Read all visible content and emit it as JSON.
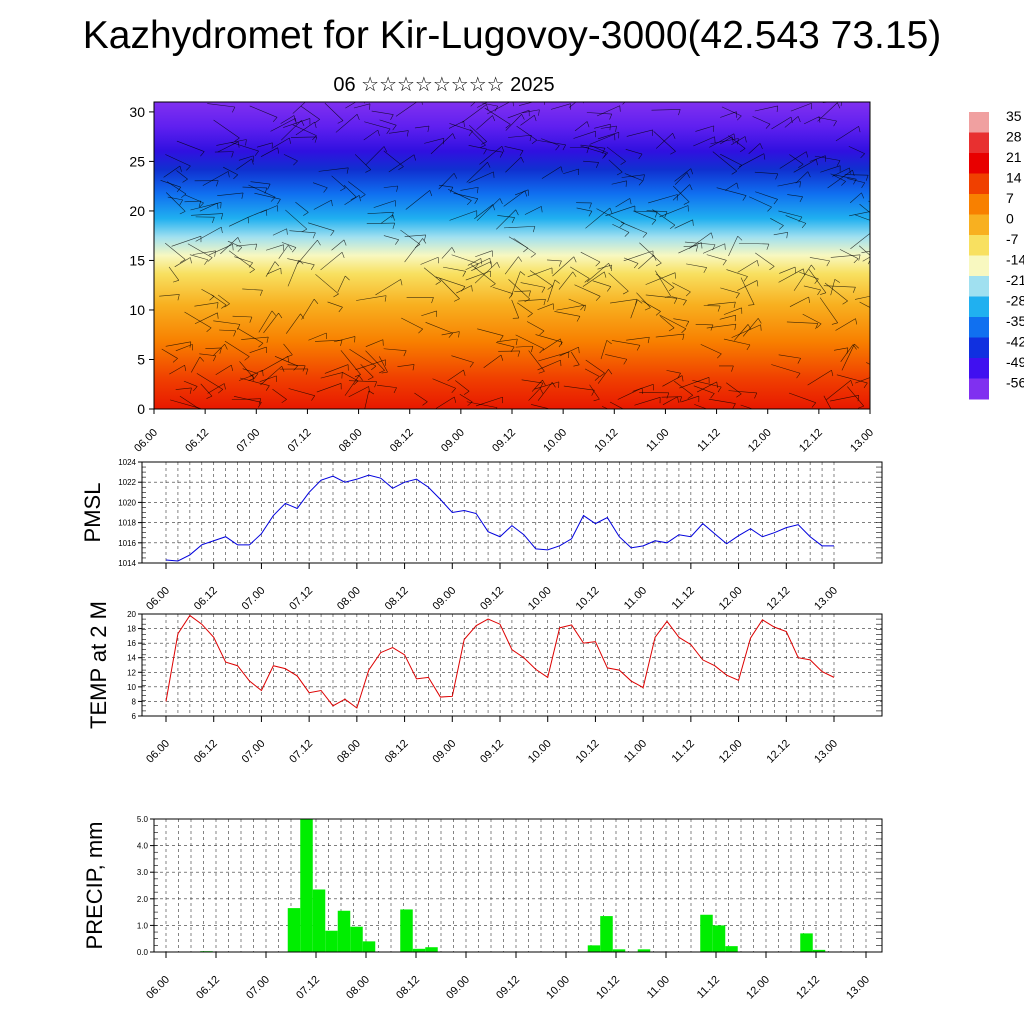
{
  "header": {
    "title": "Kazhydromet for Kir-Lugovoy-3000(42.543 73.15)",
    "subtitle": "06 ☆☆☆☆☆☆☆☆ 2025"
  },
  "time_labels": [
    "06.00",
    "06.12",
    "07.00",
    "07.12",
    "08.00",
    "08.12",
    "09.00",
    "09.12",
    "10.00",
    "10.12",
    "11.00",
    "11.12",
    "12.00",
    "12.12",
    "13.00"
  ],
  "colors": {
    "pmsl": "#0000dd",
    "temp": "#dd0000",
    "precip": "#00ee00"
  },
  "chart_data": [
    {
      "type": "heatmap",
      "title": "",
      "x_ticks": [
        "06.00",
        "06.12",
        "07.00",
        "07.12",
        "08.00",
        "08.12",
        "09.00",
        "09.12",
        "10.00",
        "10.12",
        "11.00",
        "11.12",
        "12.00",
        "12.12",
        "13.00"
      ],
      "y_ticks": [
        "0",
        "5",
        "10",
        "15",
        "20",
        "25",
        "30"
      ],
      "ylim": [
        0,
        31
      ],
      "colorbar_labels": [
        "35",
        "28",
        "21",
        "14",
        "7",
        "0",
        "-7",
        "-14",
        "-21",
        "-28",
        "-35",
        "-42",
        "-49",
        "-56"
      ],
      "colorbar_colors": [
        "#f0a0a0",
        "#e83030",
        "#e80000",
        "#f04000",
        "#f88000",
        "#f8b020",
        "#f8e060",
        "#f8f8c0",
        "#a0e0f0",
        "#20b0f0",
        "#1070f0",
        "#1030e0",
        "#4010f0",
        "#8030f0"
      ],
      "overlay": "wind barbs"
    },
    {
      "type": "line",
      "ylabel": "PMSL",
      "ylim": [
        1014,
        1024
      ],
      "y_ticks": [
        "1014",
        "1016",
        "1018",
        "1020",
        "1022",
        "1024"
      ],
      "series": [
        {
          "values": [
            1014.3,
            1014.2,
            1014.8,
            1015.8,
            1016.2,
            1016.6,
            1015.8,
            1015.8,
            1016.9,
            1018.7,
            1019.9,
            1019.4,
            1021.0,
            1022.2,
            1022.6,
            1022.0,
            1022.3,
            1022.7,
            1022.4,
            1021.4,
            1022.0,
            1022.3,
            1021.5,
            1020.3,
            1019.0,
            1019.2,
            1018.9,
            1017.1,
            1016.6,
            1017.7,
            1016.8,
            1015.4,
            1015.3,
            1015.7,
            1016.4,
            1018.7,
            1017.9,
            1018.5,
            1016.6,
            1015.5,
            1015.7,
            1016.2,
            1016.0,
            1016.8,
            1016.6,
            1017.9,
            1016.9,
            1015.9,
            1016.7,
            1017.4,
            1016.6,
            1017.0,
            1017.5,
            1017.8,
            1016.6,
            1015.7,
            1015.7
          ]
        }
      ]
    },
    {
      "type": "line",
      "ylabel": "TEMP at 2 M",
      "ylim": [
        6,
        20
      ],
      "y_ticks": [
        "6",
        "8",
        "10",
        "12",
        "14",
        "16",
        "18",
        "20"
      ],
      "series": [
        {
          "values": [
            8.0,
            17.3,
            19.8,
            18.6,
            16.8,
            13.4,
            12.9,
            10.8,
            9.5,
            12.9,
            12.5,
            11.5,
            9.2,
            9.5,
            7.4,
            8.3,
            7.1,
            12.3,
            14.7,
            15.4,
            14.4,
            11.1,
            11.3,
            8.6,
            8.7,
            16.5,
            18.4,
            19.3,
            18.6,
            15.1,
            14.0,
            12.4,
            11.3,
            18.1,
            18.5,
            16.0,
            16.2,
            12.6,
            12.3,
            10.8,
            9.9,
            16.8,
            19.0,
            16.8,
            15.8,
            13.7,
            12.9,
            11.6,
            10.9,
            16.7,
            19.2,
            18.2,
            17.6,
            14.0,
            13.7,
            12.1,
            11.3
          ]
        }
      ]
    },
    {
      "type": "bar",
      "ylabel": "PRECIP, mm",
      "ylim": [
        0,
        5
      ],
      "y_ticks": [
        "0.0",
        "1.0",
        "2.0",
        "3.0",
        "4.0",
        "5.0"
      ],
      "values": [
        0,
        0,
        0,
        0.03,
        0,
        0,
        0,
        0,
        0,
        0,
        1.65,
        5.0,
        2.35,
        0.8,
        1.55,
        0.95,
        0.4,
        0,
        0,
        1.6,
        0.12,
        0.18,
        0,
        0,
        0,
        0,
        0,
        0,
        0,
        0,
        0,
        0,
        0,
        0,
        0.25,
        1.35,
        0.1,
        0,
        0.1,
        0,
        0,
        0,
        0,
        1.4,
        1.0,
        0.22,
        0,
        0,
        0,
        0,
        0,
        0.7,
        0.08,
        0,
        0,
        0,
        0
      ]
    }
  ]
}
